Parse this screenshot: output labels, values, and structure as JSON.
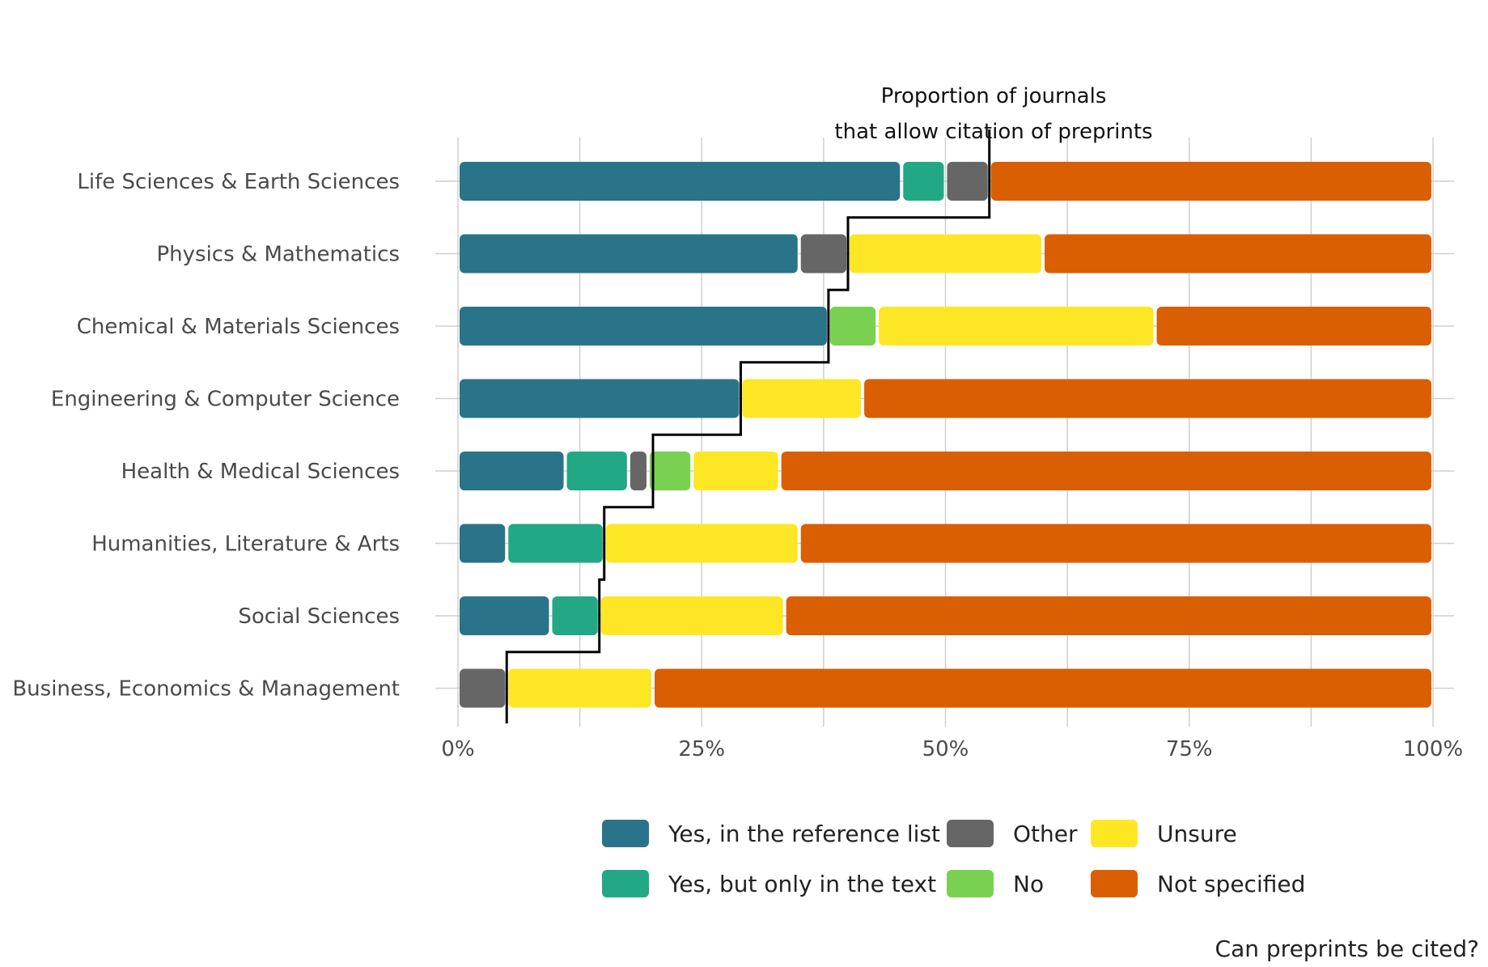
{
  "chart_data": {
    "type": "bar",
    "orientation": "horizontal",
    "stacked": true,
    "title": "",
    "caption": "Can preprints be cited?",
    "annotation_lines": [
      "Proportion of journals",
      "that allow citation of preprints"
    ],
    "xlabel": "",
    "ylabel": "",
    "xlim": [
      0,
      100
    ],
    "x_ticks": [
      0,
      25,
      50,
      75,
      100
    ],
    "x_tick_labels": [
      "0%",
      "25%",
      "50%",
      "75%",
      "100%"
    ],
    "grid": true,
    "legend_position": "bottom",
    "categories": [
      "Life Sciences & Earth Sciences",
      "Physics & Mathematics",
      "Chemical & Materials Sciences",
      "Engineering & Computer Science",
      "Health & Medical Sciences",
      "Humanities, Literature & Arts",
      "Social Sciences",
      "Business, Economics & Management"
    ],
    "series": [
      {
        "name": "Yes, in the reference list",
        "color": "#2a7489",
        "values": [
          45.5,
          35.0,
          38.0,
          29.0,
          11.0,
          5.0,
          9.5,
          0.0
        ]
      },
      {
        "name": "Yes, but only in the text",
        "color": "#22a884",
        "values": [
          4.5,
          0.0,
          0.0,
          0.0,
          6.5,
          10.0,
          5.0,
          0.0
        ]
      },
      {
        "name": "Other",
        "color": "#666666",
        "values": [
          4.5,
          5.0,
          0.0,
          0.0,
          2.0,
          0.0,
          0.0,
          5.0
        ]
      },
      {
        "name": "No",
        "color": "#7ad151",
        "values": [
          0.0,
          0.0,
          5.0,
          0.0,
          4.5,
          0.0,
          0.0,
          0.0
        ]
      },
      {
        "name": "Unsure",
        "color": "#fde725",
        "values": [
          0.0,
          20.0,
          28.5,
          12.5,
          9.0,
          20.0,
          19.0,
          15.0
        ]
      },
      {
        "name": "Not specified",
        "color": "#d95f02",
        "values": [
          45.5,
          40.0,
          28.5,
          58.5,
          67.0,
          65.0,
          66.5,
          80.0
        ]
      }
    ],
    "citation_allowed_proportion": [
      54.5,
      40.0,
      38.0,
      29.0,
      20.0,
      15.0,
      14.5,
      5.0
    ],
    "legend_order": [
      "Yes, in the reference list",
      "Other",
      "Unsure",
      "Yes, but only in the text",
      "No",
      "Not specified"
    ]
  }
}
